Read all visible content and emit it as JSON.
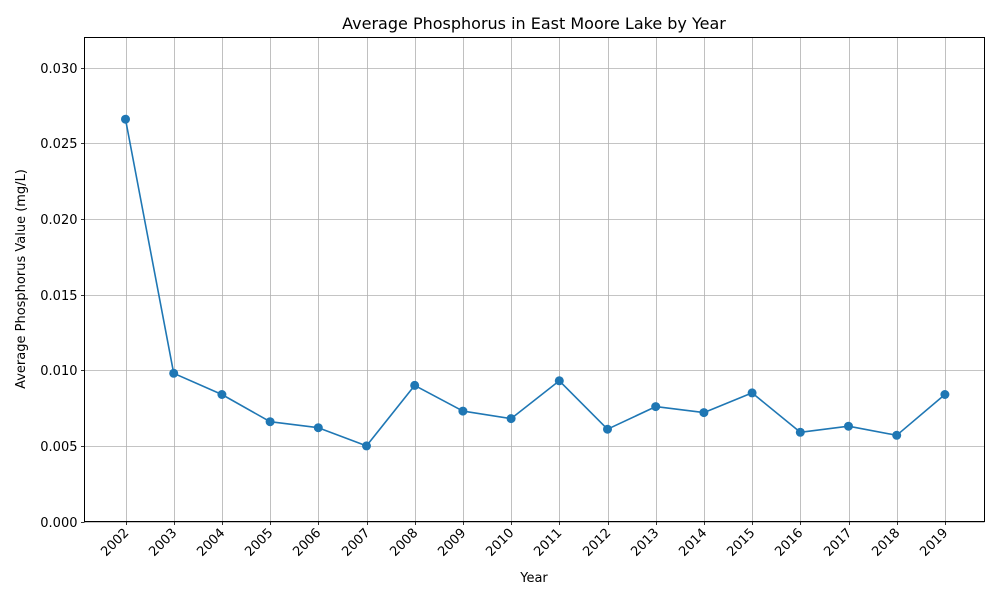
{
  "chart_data": {
    "type": "line",
    "title": "Average Phosphorus in East Moore Lake by Year",
    "xlabel": "Year",
    "ylabel": "Average Phosphorus Value (mg/L)",
    "x": [
      "2002",
      "2003",
      "2004",
      "2005",
      "2006",
      "2007",
      "2008",
      "2009",
      "2010",
      "2011",
      "2012",
      "2013",
      "2014",
      "2015",
      "2016",
      "2017",
      "2018",
      "2019"
    ],
    "series": [
      {
        "values": [
          0.0266,
          0.0098,
          0.0084,
          0.0066,
          0.0062,
          0.005,
          0.009,
          0.0073,
          0.0068,
          0.0093,
          0.0061,
          0.0076,
          0.0072,
          0.0085,
          0.0059,
          0.0063,
          0.0057,
          0.0084
        ],
        "color": "#1f77b4",
        "marker": "circle"
      }
    ],
    "ylim": [
      0,
      0.032
    ],
    "yticks": [
      "0.000",
      "0.005",
      "0.010",
      "0.015",
      "0.020",
      "0.025",
      "0.030"
    ],
    "grid": true,
    "legend": "none"
  }
}
